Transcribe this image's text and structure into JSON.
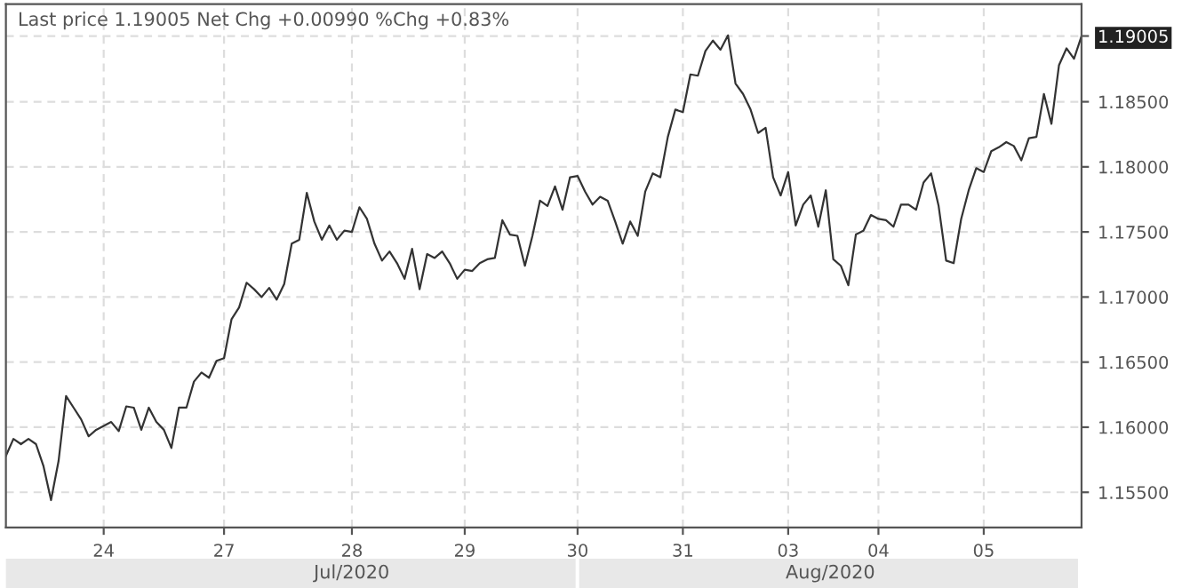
{
  "chart_data": {
    "type": "line",
    "title": "Last price 1.19005 Net Chg +0.00990 %Chg +0.83%",
    "annotations": [
      "Jul/2020",
      "Aug/2020"
    ],
    "series": [
      {
        "color": "#333333",
        "values": [
          1.1578,
          1.1591,
          1.1587,
          1.1591,
          1.1587,
          1.157,
          1.1544,
          1.1574,
          1.1624,
          1.1615,
          1.1606,
          1.1593,
          1.1598,
          1.1601,
          1.1604,
          1.1597,
          1.1616,
          1.1615,
          1.1598,
          1.1615,
          1.1604,
          1.1598,
          1.1584,
          1.1615,
          1.1615,
          1.1635,
          1.1642,
          1.1638,
          1.1651,
          1.1653,
          1.1683,
          1.1692,
          1.1711,
          1.1706,
          1.17,
          1.1707,
          1.1698,
          1.171,
          1.1741,
          1.1744,
          1.178,
          1.1758,
          1.1744,
          1.1755,
          1.1744,
          1.1751,
          1.175,
          1.1769,
          1.176,
          1.1741,
          1.1728,
          1.1735,
          1.1726,
          1.1714,
          1.1737,
          1.1706,
          1.1733,
          1.173,
          1.1735,
          1.1726,
          1.1714,
          1.1721,
          1.172,
          1.1726,
          1.1729,
          1.173,
          1.1759,
          1.1748,
          1.1747,
          1.1724,
          1.1747,
          1.1774,
          1.177,
          1.1785,
          1.1767,
          1.1792,
          1.1793,
          1.1781,
          1.1771,
          1.1777,
          1.1774,
          1.1758,
          1.1741,
          1.1758,
          1.1747,
          1.1781,
          1.1795,
          1.1792,
          1.1823,
          1.1844,
          1.1842,
          1.1871,
          1.187,
          1.1889,
          1.1897,
          1.189,
          1.1901,
          1.1864,
          1.1856,
          1.1844,
          1.1826,
          1.183,
          1.1792,
          1.1778,
          1.1796,
          1.1755,
          1.1771,
          1.1778,
          1.1754,
          1.1782,
          1.1729,
          1.1724,
          1.1709,
          1.1748,
          1.1751,
          1.1763,
          1.176,
          1.1759,
          1.1754,
          1.1771,
          1.1771,
          1.1767,
          1.1788,
          1.1795,
          1.177,
          1.1728,
          1.1726,
          1.176,
          1.1782,
          1.1799,
          1.1796,
          1.1812,
          1.1815,
          1.1819,
          1.1816,
          1.1805,
          1.1822,
          1.1823,
          1.1856,
          1.1833,
          1.1878,
          1.1891,
          1.1883,
          1.19005
        ]
      }
    ],
    "categories": [
      null,
      null,
      null,
      null,
      null,
      null,
      null,
      null,
      null,
      null,
      null,
      null,
      null,
      "24",
      null,
      null,
      null,
      null,
      null,
      null,
      null,
      null,
      null,
      null,
      null,
      null,
      null,
      null,
      null,
      "27",
      null,
      null,
      null,
      null,
      null,
      null,
      null,
      null,
      null,
      null,
      null,
      null,
      null,
      null,
      null,
      null,
      "28",
      null,
      null,
      null,
      null,
      null,
      null,
      null,
      null,
      null,
      null,
      null,
      null,
      null,
      null,
      "29",
      null,
      null,
      null,
      null,
      null,
      null,
      null,
      null,
      null,
      null,
      null,
      null,
      null,
      null,
      "30",
      null,
      null,
      null,
      null,
      null,
      null,
      null,
      null,
      null,
      null,
      null,
      null,
      null,
      "31",
      null,
      null,
      null,
      null,
      null,
      null,
      null,
      null,
      null,
      null,
      null,
      null,
      null,
      "03",
      null,
      null,
      null,
      null,
      null,
      null,
      null,
      null,
      null,
      null,
      null,
      "04",
      null,
      null,
      null,
      null,
      null,
      null,
      null,
      null,
      null,
      null,
      null,
      null,
      null,
      "05",
      null,
      null,
      null,
      null,
      null,
      null,
      null,
      null,
      null,
      null,
      null,
      null,
      null
    ],
    "ylim": [
      1.1523,
      1.1925
    ],
    "yticks": [
      {
        "value": 1.155,
        "label": "1.15500"
      },
      {
        "value": 1.16,
        "label": "1.16000"
      },
      {
        "value": 1.165,
        "label": "1.16500"
      },
      {
        "value": 1.17,
        "label": "1.17000"
      },
      {
        "value": 1.175,
        "label": "1.17500"
      },
      {
        "value": 1.18,
        "label": "1.18000"
      },
      {
        "value": 1.185,
        "label": "1.18500"
      },
      {
        "value": 1.19005,
        "label": "1.19005"
      }
    ],
    "grid": true,
    "line_style": "solid"
  }
}
